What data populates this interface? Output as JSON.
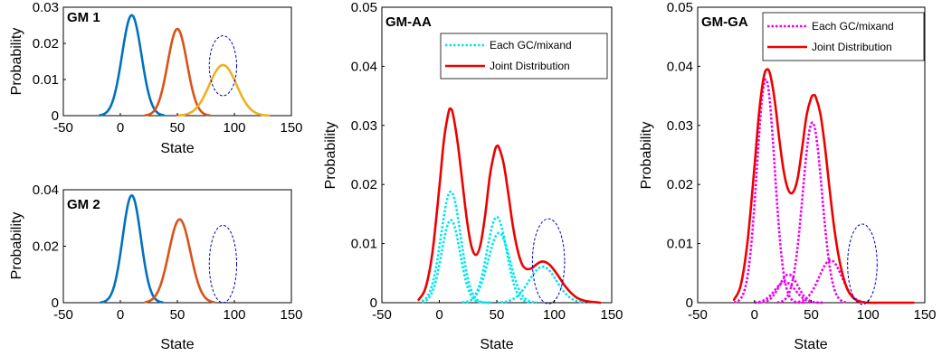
{
  "chart_data": [
    {
      "id": "gm1",
      "type": "line",
      "title": "GM 1",
      "xlabel": "State",
      "ylabel": "Probability",
      "xlim": [
        -50,
        150
      ],
      "ylim": [
        0,
        0.03
      ],
      "xticks": [
        -50,
        0,
        50,
        100,
        150
      ],
      "yticks": [
        0,
        0.01,
        0.02,
        0.03
      ],
      "ytick_labels": [
        "0",
        "0.01",
        "0.02",
        "0.03"
      ],
      "grid": false,
      "series": [
        {
          "color": "#0072BD",
          "style": "solid",
          "gaussian": {
            "mean": 10,
            "sd": 8.5,
            "peak": 0.0278
          },
          "x_range": [
            -18,
            38
          ]
        },
        {
          "color": "#D95319",
          "style": "solid",
          "gaussian": {
            "mean": 50,
            "sd": 8.5,
            "peak": 0.024
          },
          "x_range": [
            22,
            78
          ]
        },
        {
          "color": "#EDB120",
          "style": "solid",
          "gaussian": {
            "mean": 90,
            "sd": 12,
            "peak": 0.014
          },
          "x_range": [
            50,
            130
          ]
        }
      ],
      "annotations": [
        {
          "shape": "dashed-ellipse",
          "color": "#0000CC",
          "cx": 90,
          "cy": 0.0138,
          "rx": 12,
          "ry": 0.0083
        }
      ]
    },
    {
      "id": "gm2",
      "type": "line",
      "title": "GM 2",
      "xlabel": "State",
      "ylabel": "Probability",
      "xlim": [
        -50,
        150
      ],
      "ylim": [
        0,
        0.04
      ],
      "xticks": [
        -50,
        0,
        50,
        100,
        150
      ],
      "yticks": [
        0,
        0.02,
        0.04
      ],
      "ytick_labels": [
        "0",
        "0.02",
        "0.04"
      ],
      "grid": false,
      "series": [
        {
          "color": "#0072BD",
          "style": "solid",
          "gaussian": {
            "mean": 10,
            "sd": 8,
            "peak": 0.038
          },
          "x_range": [
            -17,
            37
          ]
        },
        {
          "color": "#D95319",
          "style": "solid",
          "gaussian": {
            "mean": 52,
            "sd": 9.5,
            "peak": 0.0295
          },
          "x_range": [
            22,
            82
          ]
        }
      ],
      "annotations": [
        {
          "shape": "dashed-ellipse",
          "color": "#0000CC",
          "cx": 90,
          "cy": 0.0137,
          "rx": 12,
          "ry": 0.0137
        }
      ]
    },
    {
      "id": "gmaa",
      "type": "line",
      "title": "GM-AA",
      "xlabel": "State",
      "ylabel": "Probability",
      "xlim": [
        -50,
        150
      ],
      "ylim": [
        0,
        0.05
      ],
      "xticks": [
        -50,
        0,
        50,
        100,
        150
      ],
      "yticks": [
        0,
        0.01,
        0.02,
        0.03,
        0.04,
        0.05
      ],
      "ytick_labels": [
        "0",
        "0.01",
        "0.02",
        "0.03",
        "0.04",
        "0.05"
      ],
      "grid": false,
      "legend": {
        "position": "top-right",
        "entries": [
          "Each GC/mixand",
          "Joint Distribution"
        ]
      },
      "series": [
        {
          "name": "Each GC/mixand",
          "color": "#00E5EE",
          "style": "dotted",
          "gaussian": {
            "mean": 10,
            "sd": 8.5,
            "peak": 0.0188
          },
          "x_range": [
            -15,
            45
          ]
        },
        {
          "name": "Each GC/mixand",
          "color": "#00E5EE",
          "style": "dotted",
          "gaussian": {
            "mean": 10,
            "sd": 8,
            "peak": 0.014
          },
          "x_range": [
            -15,
            45
          ]
        },
        {
          "name": "Each GC/mixand",
          "color": "#00E5EE",
          "style": "dotted",
          "gaussian": {
            "mean": 50,
            "sd": 8.5,
            "peak": 0.0145
          },
          "x_range": [
            20,
            80
          ]
        },
        {
          "name": "Each GC/mixand",
          "color": "#00E5EE",
          "style": "dotted",
          "gaussian": {
            "mean": 52,
            "sd": 9.5,
            "peak": 0.0118
          },
          "x_range": [
            20,
            85
          ]
        },
        {
          "name": "Each GC/mixand",
          "color": "#00E5EE",
          "style": "dotted",
          "gaussian": {
            "mean": 90,
            "sd": 12,
            "peak": 0.0061
          },
          "x_range": [
            50,
            130
          ]
        },
        {
          "name": "Joint Distribution",
          "color": "#EE0000",
          "style": "solid",
          "x": [
            -18,
            -12,
            -6,
            0,
            4,
            8,
            10,
            12,
            16,
            20,
            24,
            28,
            32,
            36,
            40,
            44,
            48,
            50,
            52,
            56,
            60,
            64,
            68,
            72,
            76,
            80,
            84,
            88,
            92,
            96,
            100,
            104,
            108,
            112,
            116,
            120,
            125,
            130,
            135,
            140
          ],
          "y": [
            0.0005,
            0.0025,
            0.0085,
            0.0195,
            0.0275,
            0.0322,
            0.0328,
            0.0318,
            0.027,
            0.0205,
            0.014,
            0.0095,
            0.0081,
            0.01,
            0.015,
            0.0215,
            0.0255,
            0.0265,
            0.0262,
            0.0235,
            0.0185,
            0.013,
            0.009,
            0.0065,
            0.0057,
            0.0058,
            0.0064,
            0.0069,
            0.0069,
            0.0064,
            0.0055,
            0.0044,
            0.0032,
            0.0022,
            0.0014,
            0.0008,
            0.0004,
            0.0002,
            0.0001,
            0.0
          ]
        }
      ],
      "annotations": [
        {
          "shape": "dashed-ellipse",
          "color": "#0000CC",
          "cx": 95,
          "cy": 0.007,
          "rx": 14,
          "ry": 0.0072
        }
      ]
    },
    {
      "id": "gmga",
      "type": "line",
      "title": "GM-GA",
      "xlabel": "State",
      "ylabel": "Probability",
      "xlim": [
        -50,
        150
      ],
      "ylim": [
        0,
        0.05
      ],
      "xticks": [
        -50,
        0,
        50,
        100,
        150
      ],
      "yticks": [
        0,
        0.01,
        0.02,
        0.03,
        0.04,
        0.05
      ],
      "ytick_labels": [
        "0",
        "0.01",
        "0.02",
        "0.03",
        "0.04",
        "0.05"
      ],
      "grid": false,
      "legend": {
        "position": "top-right",
        "entries": [
          "Each GC/mixand",
          "Joint Distribution"
        ]
      },
      "series": [
        {
          "name": "Each GC/mixand",
          "color": "#EE00EE",
          "style": "dotted",
          "gaussian": {
            "mean": 10,
            "sd": 7.8,
            "peak": 0.0378
          },
          "x_range": [
            -18,
            45
          ]
        },
        {
          "name": "Each GC/mixand",
          "color": "#EE00EE",
          "style": "dotted",
          "gaussian": {
            "mean": 51,
            "sd": 8.5,
            "peak": 0.0305
          },
          "x_range": [
            20,
            82
          ]
        },
        {
          "name": "Each GC/mixand",
          "color": "#EE00EE",
          "style": "dotted",
          "gaussian": {
            "mean": 30,
            "sd": 8,
            "peak": 0.0048
          },
          "x_range": [
            0,
            60
          ]
        },
        {
          "name": "Each GC/mixand",
          "color": "#EE00EE",
          "style": "dotted",
          "gaussian": {
            "mean": 67,
            "sd": 10,
            "peak": 0.0072
          },
          "x_range": [
            35,
            100
          ]
        },
        {
          "name": "Each GC/mixand",
          "color": "#EE00EE",
          "style": "dotted",
          "gaussian": {
            "mean": 27,
            "sd": 9,
            "peak": 0.0035
          },
          "x_range": [
            0,
            60
          ]
        },
        {
          "name": "Joint Distribution",
          "color": "#EE0000",
          "style": "solid",
          "x": [
            -18,
            -12,
            -6,
            0,
            4,
            8,
            11,
            14,
            18,
            22,
            26,
            30,
            34,
            38,
            42,
            46,
            50,
            52,
            54,
            58,
            62,
            66,
            70,
            74,
            78,
            82,
            86,
            90,
            95,
            100,
            110,
            120,
            130,
            140
          ],
          "y": [
            0.0005,
            0.003,
            0.0105,
            0.023,
            0.032,
            0.038,
            0.0395,
            0.0385,
            0.034,
            0.0275,
            0.022,
            0.019,
            0.0187,
            0.021,
            0.0262,
            0.0318,
            0.0347,
            0.0351,
            0.0348,
            0.032,
            0.0265,
            0.0195,
            0.013,
            0.008,
            0.0045,
            0.0022,
            0.001,
            0.0004,
            0.0001,
            0.0,
            0.0,
            0.0,
            0.0,
            0.0
          ]
        }
      ],
      "annotations": [
        {
          "shape": "dashed-ellipse",
          "color": "#0000CC",
          "cx": 95,
          "cy": 0.0065,
          "rx": 13,
          "ry": 0.0068
        }
      ]
    }
  ]
}
